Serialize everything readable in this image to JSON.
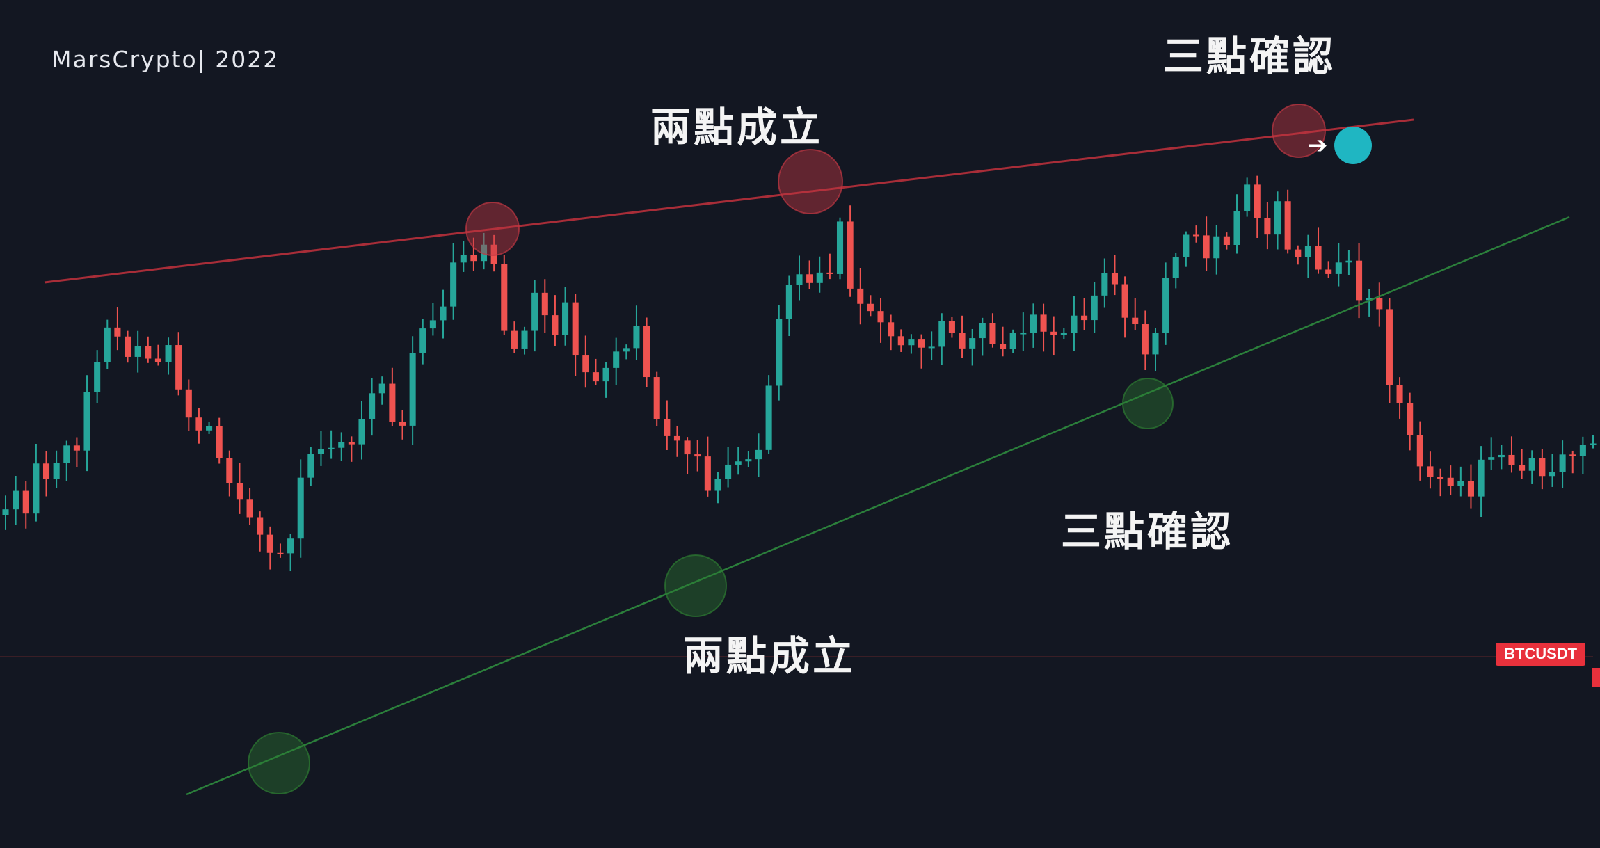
{
  "watermark": "MarsCrypto| 2022",
  "annotations": {
    "top_left": "兩點成立",
    "top_right": "三點確認",
    "mid_right": "三點確認",
    "bottom": "兩點成立"
  },
  "symbol_label": "BTCUSDT",
  "colors": {
    "background": "#131722",
    "up_candle": "#26a69a",
    "down_candle": "#ef5350",
    "resistance_line": "#c2313d",
    "support_line": "#2e8b3e",
    "resistance_touch": "#c23843",
    "support_touch": "#2e7d32",
    "price_tag": "#e8313c",
    "cursor": "#1fb6c2"
  },
  "icons": [
    "cursor-dot-icon",
    "cursor-arrow-icon"
  ],
  "chart_data": {
    "type": "candlestick",
    "symbol": "BTCUSDT",
    "grid": false,
    "ylim": [
      0,
      100
    ],
    "series": [
      {
        "name": "price",
        "close_path": [
          [
            0,
            36
          ],
          [
            2,
            35
          ],
          [
            3,
            42
          ],
          [
            4,
            40
          ],
          [
            6,
            45
          ],
          [
            7,
            46
          ],
          [
            8,
            56
          ],
          [
            10,
            65
          ],
          [
            12,
            63
          ],
          [
            14,
            60
          ],
          [
            16,
            62
          ],
          [
            18,
            50
          ],
          [
            20,
            48
          ],
          [
            22,
            38
          ],
          [
            24,
            34
          ],
          [
            25,
            30
          ],
          [
            26,
            26
          ],
          [
            28,
            30
          ],
          [
            29,
            40
          ],
          [
            32,
            46
          ],
          [
            34,
            47
          ],
          [
            36,
            53
          ],
          [
            37,
            55
          ],
          [
            38,
            50
          ],
          [
            39,
            48
          ],
          [
            40,
            62
          ],
          [
            41,
            65
          ],
          [
            43,
            72
          ],
          [
            44,
            78
          ],
          [
            46,
            80
          ],
          [
            47,
            82
          ],
          [
            48,
            80
          ],
          [
            49,
            68
          ],
          [
            50,
            64
          ],
          [
            52,
            72
          ],
          [
            54,
            66
          ],
          [
            55,
            70
          ],
          [
            56,
            62
          ],
          [
            57,
            60
          ],
          [
            58,
            58
          ],
          [
            60,
            64
          ],
          [
            62,
            66
          ],
          [
            63,
            60
          ],
          [
            64,
            52
          ],
          [
            66,
            46
          ],
          [
            68,
            44
          ],
          [
            69,
            38
          ],
          [
            70,
            40
          ],
          [
            72,
            44
          ],
          [
            74,
            46
          ],
          [
            75,
            56
          ],
          [
            76,
            70
          ],
          [
            78,
            78
          ],
          [
            80,
            76
          ],
          [
            81,
            77
          ],
          [
            82,
            88
          ],
          [
            83,
            75
          ],
          [
            84,
            73
          ],
          [
            86,
            68
          ],
          [
            88,
            64
          ],
          [
            90,
            62
          ],
          [
            92,
            68
          ],
          [
            94,
            62
          ],
          [
            96,
            66
          ],
          [
            98,
            65
          ],
          [
            100,
            67
          ],
          [
            102,
            68
          ],
          [
            104,
            66
          ],
          [
            106,
            69
          ],
          [
            108,
            76
          ],
          [
            110,
            70
          ],
          [
            112,
            64
          ],
          [
            113,
            68
          ],
          [
            114,
            76
          ],
          [
            116,
            84
          ],
          [
            118,
            80
          ],
          [
            120,
            83
          ],
          [
            122,
            91
          ],
          [
            124,
            86
          ],
          [
            125,
            89
          ],
          [
            126,
            82
          ],
          [
            128,
            80
          ],
          [
            130,
            77
          ],
          [
            132,
            78
          ],
          [
            133,
            74
          ],
          [
            134,
            72
          ],
          [
            135,
            69
          ],
          [
            136,
            58
          ],
          [
            138,
            46
          ],
          [
            140,
            40
          ],
          [
            142,
            37
          ],
          [
            144,
            38
          ],
          [
            145,
            42
          ],
          [
            147,
            42
          ],
          [
            149,
            41
          ],
          [
            151,
            42
          ],
          [
            153,
            43
          ],
          [
            155,
            44
          ],
          [
            156,
            44
          ]
        ]
      }
    ],
    "annotations": [
      {
        "text": "兩點成立",
        "near": "resistance, second touch"
      },
      {
        "text": "三點確認",
        "near": "resistance, third touch"
      },
      {
        "text": "三點確認",
        "near": "support, third touch"
      },
      {
        "text": "兩點成立",
        "near": "support, second touch"
      }
    ],
    "trendlines": [
      {
        "name": "resistance",
        "color": "#c2313d",
        "touches": 3
      },
      {
        "name": "support",
        "color": "#2e8b3e",
        "touches": 3
      }
    ]
  }
}
